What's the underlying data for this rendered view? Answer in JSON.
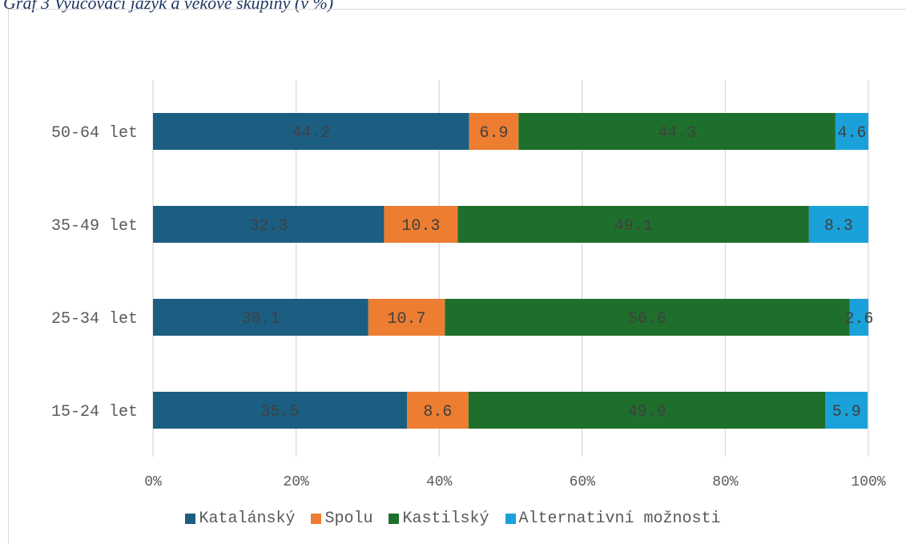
{
  "caption": "Graf 3 Vyučovací jazyk a věkové skupiny (v %)",
  "chart_data": {
    "type": "bar",
    "orientation": "horizontal",
    "stacked": true,
    "categories": [
      "50-64 let",
      "35-49 let",
      "25-34 let",
      "15-24 let"
    ],
    "series": [
      {
        "name": "Katalánský",
        "color": "#1b5e82",
        "values": [
          44.2,
          32.3,
          30.1,
          35.5
        ]
      },
      {
        "name": "Spolu",
        "color": "#ed7d31",
        "values": [
          6.9,
          10.3,
          10.7,
          8.6
        ]
      },
      {
        "name": "Kastilský",
        "color": "#1e6f2b",
        "values": [
          44.3,
          49.1,
          56.6,
          49.9
        ]
      },
      {
        "name": "Alternativní možnosti",
        "color": "#1ba1d9",
        "values": [
          4.6,
          8.3,
          2.6,
          5.9
        ]
      }
    ],
    "x_ticks": [
      "0%",
      "20%",
      "40%",
      "60%",
      "80%",
      "100%"
    ],
    "xlim": [
      0,
      100
    ],
    "grid": true,
    "legend_position": "bottom",
    "data_labels": true
  }
}
